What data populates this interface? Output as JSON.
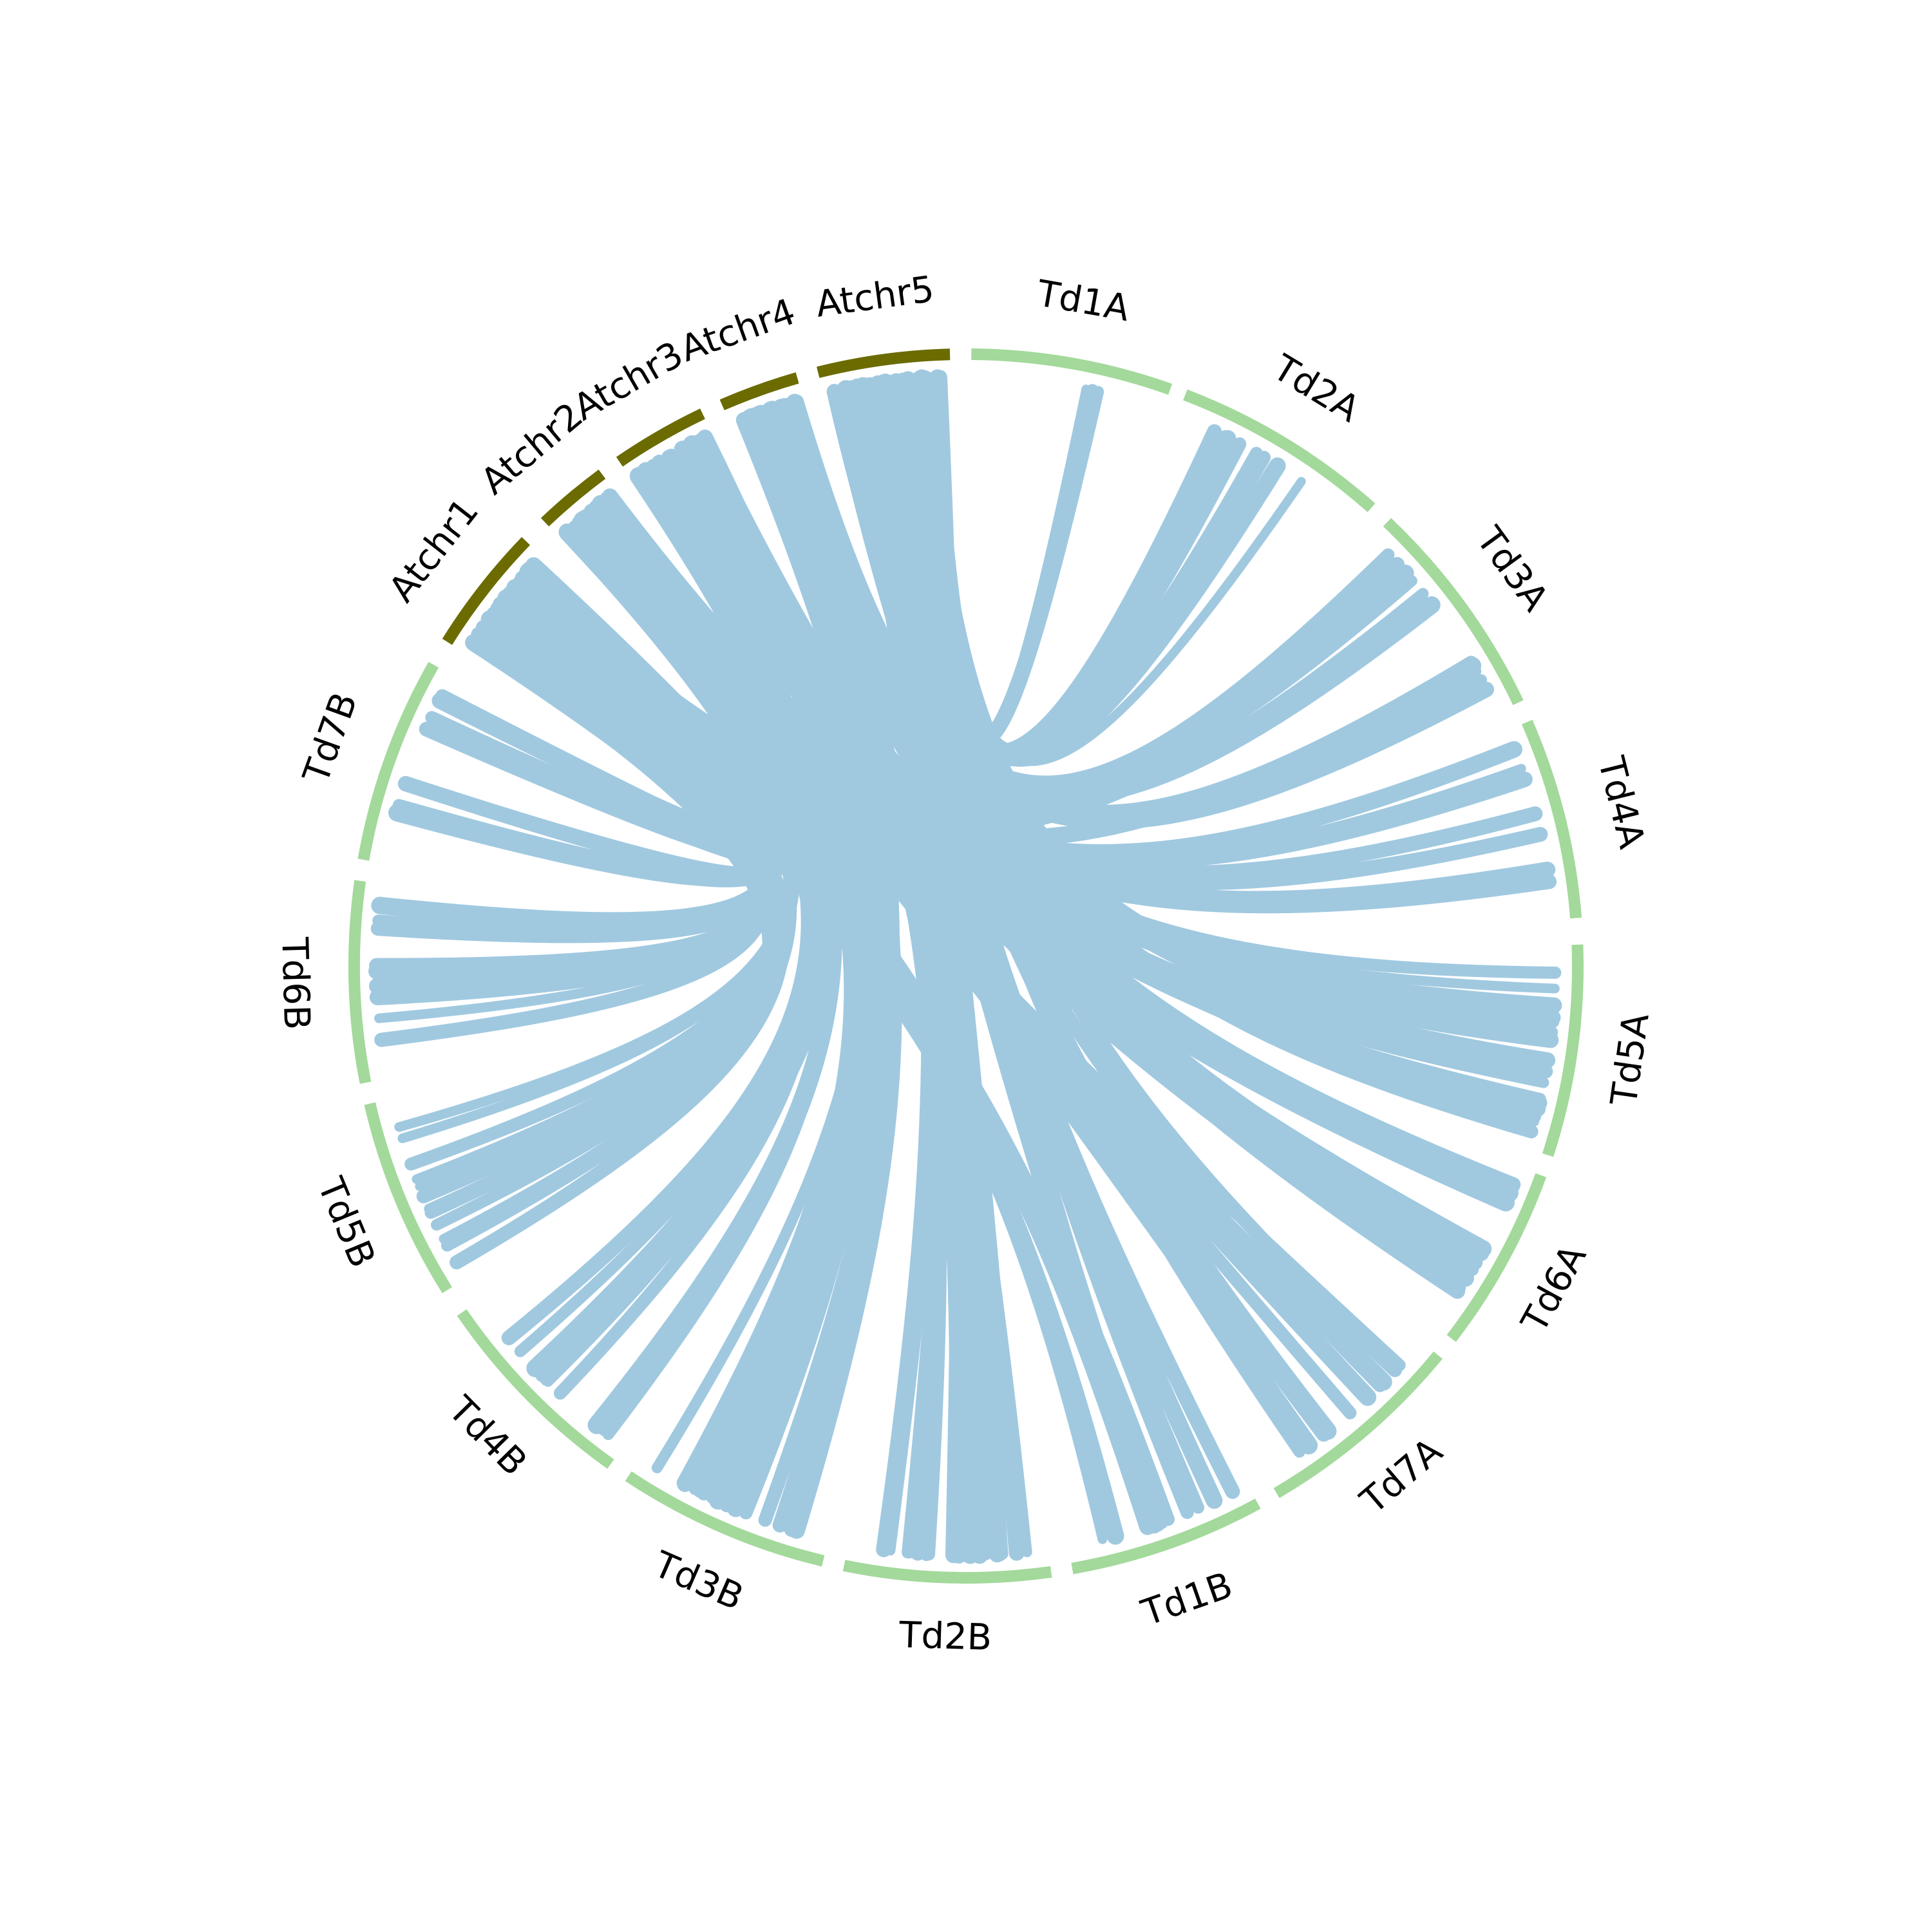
{
  "chart_data": {
    "type": "chord",
    "colors": {
      "arabidopsis": "#6b6b00",
      "wheat": "#a3d99b",
      "link": "#a0c9e0",
      "background": "#ffffff"
    },
    "segments": [
      {
        "name": "Td1A",
        "group": "wheat",
        "start": 0.5,
        "end": 19.5
      },
      {
        "name": "Td2A",
        "group": "wheat",
        "start": 21.0,
        "end": 41.5
      },
      {
        "name": "Td3A",
        "group": "wheat",
        "start": 43.5,
        "end": 64.5
      },
      {
        "name": "Td4A",
        "group": "wheat",
        "start": 66.5,
        "end": 85.5
      },
      {
        "name": "Td5A",
        "group": "wheat",
        "start": 88.0,
        "end": 108.0
      },
      {
        "name": "Td6A",
        "group": "wheat",
        "start": 110.0,
        "end": 127.5
      },
      {
        "name": "Td7A",
        "group": "wheat",
        "start": 129.5,
        "end": 149.5
      },
      {
        "name": "Td1B",
        "group": "wheat",
        "start": 151.5,
        "end": 170.0
      },
      {
        "name": "Td2B",
        "group": "wheat",
        "start": 172.0,
        "end": 191.5
      },
      {
        "name": "Td3B",
        "group": "wheat",
        "start": 193.5,
        "end": 213.5
      },
      {
        "name": "Td4B",
        "group": "wheat",
        "start": 215.5,
        "end": 235.5
      },
      {
        "name": "Td5B",
        "group": "wheat",
        "start": 238.0,
        "end": 257.0
      },
      {
        "name": "Td6B",
        "group": "wheat",
        "start": 259.0,
        "end": 278.0
      },
      {
        "name": "Td7B",
        "group": "wheat",
        "start": 280.0,
        "end": 299.5
      },
      {
        "name": "Atchr1",
        "group": "arabidopsis",
        "start": 302.0,
        "end": 314.0
      },
      {
        "name": "Atchr2",
        "group": "arabidopsis",
        "start": 316.5,
        "end": 323.5
      },
      {
        "name": "Atchr3",
        "group": "arabidopsis",
        "start": 325.5,
        "end": 334.5
      },
      {
        "name": "Atchr4",
        "group": "arabidopsis",
        "start": 336.5,
        "end": 344.0
      },
      {
        "name": "Atchr5",
        "group": "arabidopsis",
        "start": 346.0,
        "end": 358.5
      }
    ],
    "links": [
      {
        "source": "Atchr5",
        "target": "Td2B",
        "count": 18
      },
      {
        "source": "Atchr5",
        "target": "Td2A",
        "count": 10
      },
      {
        "source": "Atchr5",
        "target": "Td1A",
        "count": 3
      },
      {
        "source": "Atchr5",
        "target": "Td5A",
        "count": 8
      },
      {
        "source": "Atchr5",
        "target": "Td7A",
        "count": 8
      },
      {
        "source": "Atchr5",
        "target": "Td1B",
        "count": 6
      },
      {
        "source": "Atchr4",
        "target": "Td3B",
        "count": 10
      },
      {
        "source": "Atchr4",
        "target": "Td2B",
        "count": 8
      },
      {
        "source": "Atchr4",
        "target": "Td3A",
        "count": 6
      },
      {
        "source": "Atchr4",
        "target": "Td6A",
        "count": 6
      },
      {
        "source": "Atchr3",
        "target": "Td5A",
        "count": 10
      },
      {
        "source": "Atchr3",
        "target": "Td3B",
        "count": 8
      },
      {
        "source": "Atchr3",
        "target": "Td4B",
        "count": 6
      },
      {
        "source": "Atchr3",
        "target": "Td6A",
        "count": 6
      },
      {
        "source": "Atchr2",
        "target": "Td4A",
        "count": 8
      },
      {
        "source": "Atchr2",
        "target": "Td5B",
        "count": 6
      },
      {
        "source": "Atchr2",
        "target": "Td4B",
        "count": 6
      },
      {
        "source": "Atchr2",
        "target": "Td7A",
        "count": 6
      },
      {
        "source": "Atchr1",
        "target": "Td6B",
        "count": 12
      },
      {
        "source": "Atchr1",
        "target": "Td7B",
        "count": 10
      },
      {
        "source": "Atchr1",
        "target": "Td5B",
        "count": 8
      },
      {
        "source": "Atchr1",
        "target": "Td1B",
        "count": 6
      },
      {
        "source": "Atchr1",
        "target": "Td3A",
        "count": 5
      }
    ]
  }
}
